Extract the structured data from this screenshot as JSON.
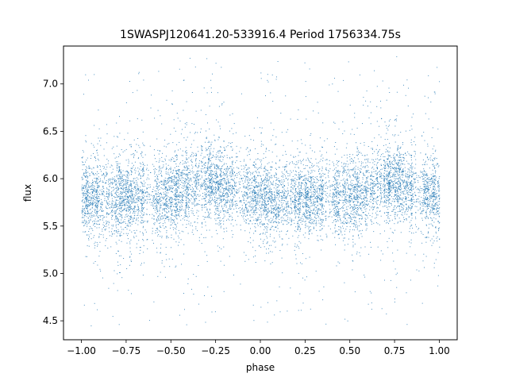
{
  "chart_data": {
    "type": "scatter",
    "title": "1SWASPJ120641.20-533916.4 Period 1756334.75s",
    "xlabel": "phase",
    "ylabel": "flux",
    "xlim": [
      -1.1,
      1.1
    ],
    "ylim": [
      4.3,
      7.4
    ],
    "x_ticks": [
      -1.0,
      -0.75,
      -0.5,
      -0.25,
      0.0,
      0.25,
      0.5,
      0.75,
      1.0
    ],
    "x_tick_labels": [
      "−1.00",
      "−0.75",
      "−0.50",
      "−0.25",
      "0.00",
      "0.25",
      "0.50",
      "0.75",
      "1.00"
    ],
    "y_ticks": [
      4.5,
      5.0,
      5.5,
      6.0,
      6.5,
      7.0
    ],
    "y_tick_labels": [
      "4.5",
      "5.0",
      "5.5",
      "6.0",
      "6.5",
      "7.0"
    ],
    "grid": false,
    "legend": "none",
    "marker_color": "#1f77b4",
    "series": [
      {
        "phase_range": [
          -1.0,
          1.0
        ],
        "point_count_approx": 20000,
        "core_flux_profile": {
          "phase": [
            -1.0,
            -0.75,
            -0.5,
            -0.35,
            -0.3,
            -0.2,
            -0.1,
            0.0,
            0.25,
            0.5,
            0.65,
            0.7,
            0.8,
            0.9,
            1.0
          ],
          "median_flux": [
            5.8,
            5.8,
            5.82,
            5.95,
            6.0,
            5.92,
            5.85,
            5.8,
            5.8,
            5.82,
            5.95,
            6.0,
            5.92,
            5.85,
            5.8
          ],
          "core_spread": 0.25
        },
        "flux_min": 4.4,
        "flux_max": 7.3
      }
    ]
  }
}
